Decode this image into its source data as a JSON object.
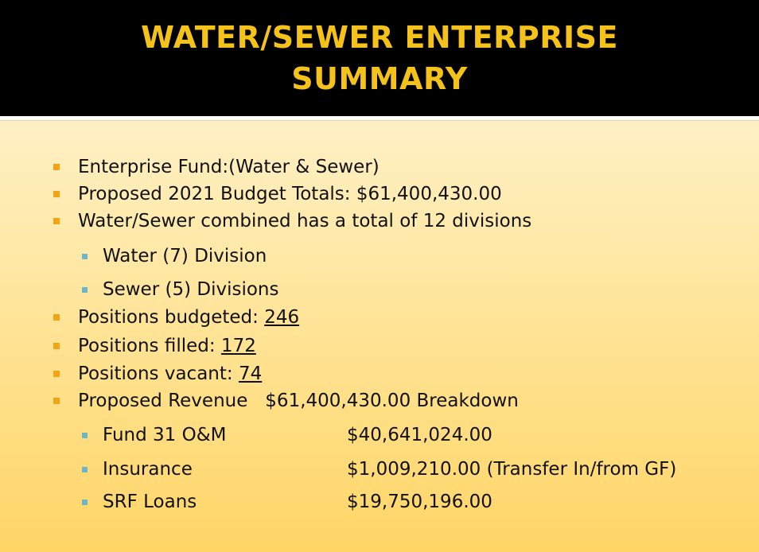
{
  "title": {
    "line1": "WATER/SEWER ENTERPRISE",
    "line2": "SUMMARY"
  },
  "colors": {
    "title_text": "#f5c21a",
    "title_band": "#000000",
    "bullet_level1": "#f2a412",
    "bullet_level2": "#6bb7c9"
  },
  "bullets": {
    "enterprise_fund": "Enterprise Fund:(Water & Sewer)",
    "budget_totals": "Proposed 2021 Budget Totals: $61,400,430.00",
    "divisions_total": "Water/Sewer combined has a total of 12 divisions",
    "water_divisions": "Water (7) Division",
    "sewer_divisions": "Sewer (5) Divisions",
    "positions_budgeted_label": "Positions budgeted: ",
    "positions_budgeted_value": "246",
    "positions_filled_label": "Positions filled: ",
    "positions_filled_value": "172",
    "positions_vacant_label": "Positions vacant: ",
    "positions_vacant_value": "74",
    "proposed_revenue": "Proposed Revenue   $61,400,430.00 Breakdown"
  },
  "breakdown": [
    {
      "label": "Fund 31 O&M",
      "amount": "$40,641,024.00"
    },
    {
      "label": "Insurance",
      "amount": "$1,009,210.00 (Transfer In/from GF)"
    },
    {
      "label": "SRF Loans",
      "amount": "$19,750,196.00"
    }
  ]
}
